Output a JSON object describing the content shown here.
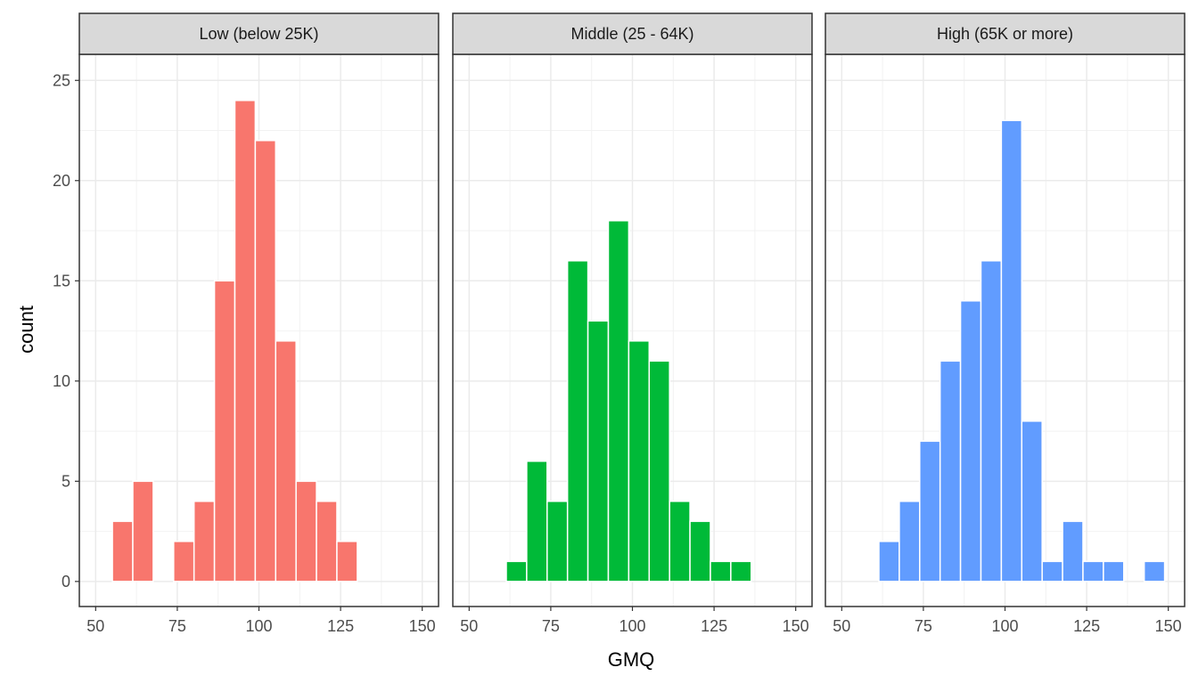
{
  "chart_data": {
    "type": "bar",
    "subtype": "faceted-histogram",
    "xlabel": "GMQ",
    "ylabel": "count",
    "xlim": [
      50,
      150
    ],
    "xticks": [
      50,
      75,
      100,
      125,
      150
    ],
    "ylim": [
      0,
      25
    ],
    "yticks": [
      0,
      5,
      10,
      15,
      20,
      25
    ],
    "bin_width": 6.25,
    "grid": true,
    "legend": "none",
    "panels": [
      {
        "name": "Low (below 25K)",
        "color": "#F8766D",
        "bins": [
          {
            "x": 58.25,
            "count": 3
          },
          {
            "x": 64.5,
            "count": 5
          },
          {
            "x": 70.75,
            "count": 0
          },
          {
            "x": 77.0,
            "count": 2
          },
          {
            "x": 83.25,
            "count": 4
          },
          {
            "x": 89.5,
            "count": 15
          },
          {
            "x": 95.75,
            "count": 24
          },
          {
            "x": 102.0,
            "count": 22
          },
          {
            "x": 108.25,
            "count": 12
          },
          {
            "x": 114.5,
            "count": 5
          },
          {
            "x": 120.75,
            "count": 4
          },
          {
            "x": 127.0,
            "count": 2
          }
        ]
      },
      {
        "name": "Middle (25 - 64K)",
        "color": "#00BA38",
        "bins": [
          {
            "x": 64.5,
            "count": 1
          },
          {
            "x": 70.75,
            "count": 6
          },
          {
            "x": 77.0,
            "count": 4
          },
          {
            "x": 83.25,
            "count": 16
          },
          {
            "x": 89.5,
            "count": 13
          },
          {
            "x": 95.75,
            "count": 18
          },
          {
            "x": 102.0,
            "count": 12
          },
          {
            "x": 108.25,
            "count": 11
          },
          {
            "x": 114.5,
            "count": 4
          },
          {
            "x": 120.75,
            "count": 3
          },
          {
            "x": 127.0,
            "count": 1
          },
          {
            "x": 133.25,
            "count": 1
          }
        ]
      },
      {
        "name": "High (65K or more)",
        "color": "#619CFF",
        "bins": [
          {
            "x": 64.5,
            "count": 2
          },
          {
            "x": 70.75,
            "count": 4
          },
          {
            "x": 77.0,
            "count": 7
          },
          {
            "x": 83.25,
            "count": 11
          },
          {
            "x": 89.5,
            "count": 14
          },
          {
            "x": 95.75,
            "count": 16
          },
          {
            "x": 102.0,
            "count": 23
          },
          {
            "x": 108.25,
            "count": 8
          },
          {
            "x": 114.5,
            "count": 1
          },
          {
            "x": 120.75,
            "count": 3
          },
          {
            "x": 127.0,
            "count": 1
          },
          {
            "x": 133.25,
            "count": 1
          },
          {
            "x": 139.5,
            "count": 0
          },
          {
            "x": 145.75,
            "count": 1
          }
        ]
      }
    ]
  }
}
